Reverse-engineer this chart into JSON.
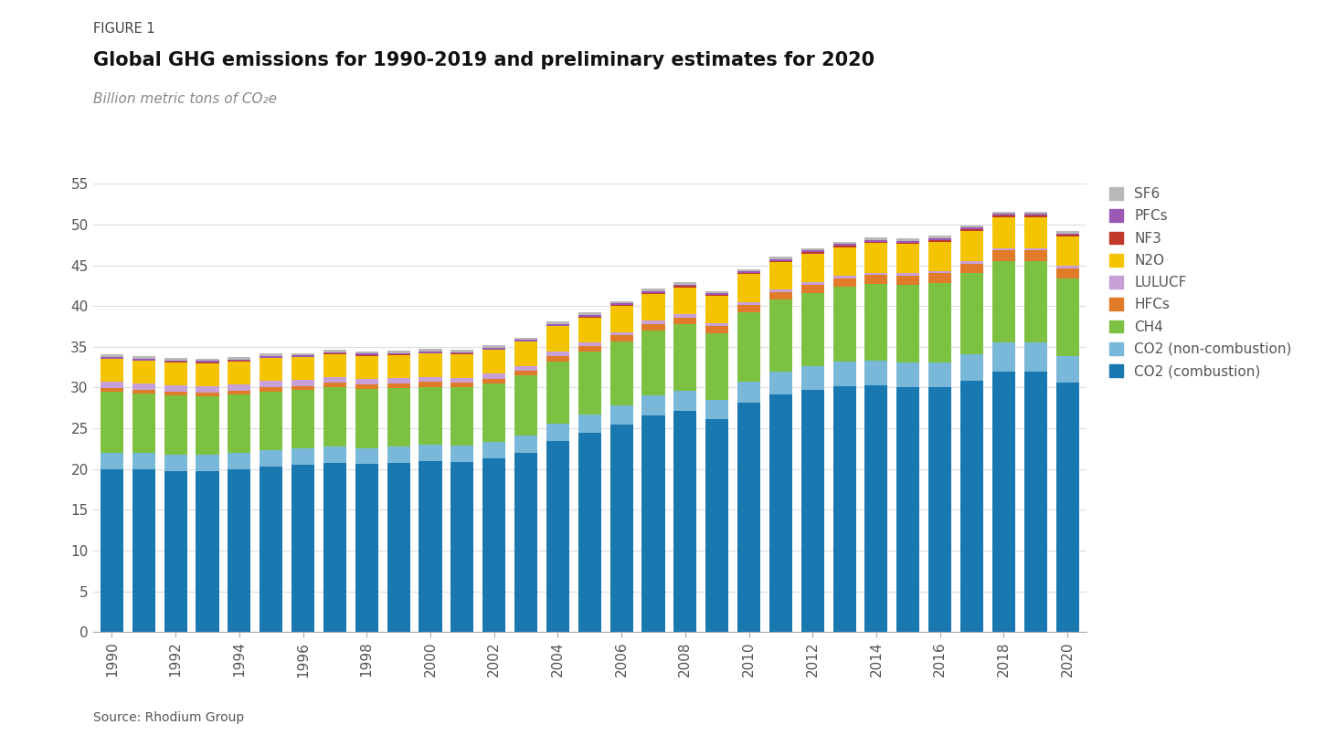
{
  "years": [
    1990,
    1991,
    1992,
    1993,
    1994,
    1995,
    1996,
    1997,
    1998,
    1999,
    2000,
    2001,
    2002,
    2003,
    2004,
    2005,
    2006,
    2007,
    2008,
    2009,
    2010,
    2011,
    2012,
    2013,
    2014,
    2015,
    2016,
    2017,
    2018,
    2019,
    2020
  ],
  "co2_combustion": [
    20.0,
    20.0,
    19.8,
    19.8,
    20.0,
    20.3,
    20.5,
    20.8,
    20.6,
    20.8,
    21.0,
    20.9,
    21.3,
    22.0,
    23.4,
    24.5,
    25.5,
    26.6,
    27.1,
    26.1,
    28.1,
    29.2,
    29.7,
    30.2,
    30.3,
    30.1,
    30.0,
    30.8,
    32.0,
    32.0,
    30.6
  ],
  "co2_noncombustion": [
    2.0,
    2.0,
    2.0,
    2.0,
    2.0,
    2.0,
    2.0,
    2.0,
    2.0,
    2.0,
    2.0,
    2.0,
    2.0,
    2.1,
    2.2,
    2.2,
    2.3,
    2.4,
    2.5,
    2.4,
    2.6,
    2.8,
    2.9,
    3.0,
    3.0,
    3.0,
    3.1,
    3.3,
    3.5,
    3.5,
    3.3
  ],
  "ch4": [
    7.5,
    7.3,
    7.2,
    7.1,
    7.1,
    7.2,
    7.2,
    7.2,
    7.2,
    7.1,
    7.1,
    7.1,
    7.2,
    7.4,
    7.6,
    7.7,
    7.8,
    8.0,
    8.2,
    8.2,
    8.5,
    8.8,
    9.0,
    9.2,
    9.4,
    9.5,
    9.7,
    9.9,
    10.0,
    10.0,
    9.5
  ],
  "hfcs": [
    0.4,
    0.4,
    0.5,
    0.5,
    0.5,
    0.5,
    0.5,
    0.6,
    0.6,
    0.6,
    0.6,
    0.6,
    0.6,
    0.6,
    0.7,
    0.7,
    0.8,
    0.8,
    0.8,
    0.8,
    0.9,
    0.9,
    1.0,
    1.0,
    1.1,
    1.1,
    1.2,
    1.2,
    1.3,
    1.3,
    1.2
  ],
  "lulucf": [
    0.8,
    0.8,
    0.8,
    0.8,
    0.8,
    0.8,
    0.7,
    0.7,
    0.7,
    0.7,
    0.6,
    0.6,
    0.6,
    0.5,
    0.5,
    0.4,
    0.4,
    0.4,
    0.4,
    0.4,
    0.4,
    0.3,
    0.3,
    0.3,
    0.3,
    0.3,
    0.3,
    0.3,
    0.3,
    0.3,
    0.3
  ],
  "n2o": [
    2.8,
    2.8,
    2.8,
    2.8,
    2.8,
    2.8,
    2.8,
    2.8,
    2.8,
    2.8,
    2.9,
    2.9,
    2.9,
    3.0,
    3.1,
    3.1,
    3.2,
    3.3,
    3.3,
    3.3,
    3.4,
    3.4,
    3.5,
    3.5,
    3.6,
    3.6,
    3.6,
    3.7,
    3.8,
    3.8,
    3.6
  ],
  "nf3": [
    0.05,
    0.05,
    0.05,
    0.05,
    0.05,
    0.05,
    0.05,
    0.05,
    0.05,
    0.05,
    0.05,
    0.05,
    0.05,
    0.05,
    0.1,
    0.1,
    0.1,
    0.1,
    0.15,
    0.15,
    0.15,
    0.15,
    0.2,
    0.2,
    0.2,
    0.2,
    0.2,
    0.2,
    0.2,
    0.2,
    0.2
  ],
  "pfcs": [
    0.2,
    0.2,
    0.2,
    0.2,
    0.2,
    0.2,
    0.2,
    0.2,
    0.2,
    0.2,
    0.2,
    0.2,
    0.2,
    0.2,
    0.2,
    0.2,
    0.2,
    0.2,
    0.2,
    0.2,
    0.2,
    0.2,
    0.2,
    0.2,
    0.2,
    0.2,
    0.2,
    0.2,
    0.2,
    0.2,
    0.2
  ],
  "sf6": [
    0.3,
    0.3,
    0.3,
    0.3,
    0.3,
    0.3,
    0.3,
    0.3,
    0.3,
    0.3,
    0.3,
    0.3,
    0.3,
    0.3,
    0.3,
    0.3,
    0.3,
    0.3,
    0.3,
    0.3,
    0.3,
    0.3,
    0.3,
    0.3,
    0.3,
    0.3,
    0.3,
    0.3,
    0.3,
    0.3,
    0.3
  ],
  "colors": {
    "co2_combustion": "#1a78b0",
    "co2_noncombustion": "#7ab8d9",
    "ch4": "#7dc142",
    "hfcs": "#e07b2a",
    "lulucf": "#c8a0d8",
    "n2o": "#f5c400",
    "nf3": "#c0392b",
    "pfcs": "#9b59b6",
    "sf6": "#b8b8b8"
  },
  "labels": {
    "co2_combustion": "CO2 (combustion)",
    "co2_noncombustion": "CO2 (non-combustion)",
    "ch4": "CH4",
    "hfcs": "HFCs",
    "lulucf": "LULUCF",
    "n2o": "N2O",
    "nf3": "NF3",
    "pfcs": "PFCs",
    "sf6": "SF6"
  },
  "figure_label": "FIGURE 1",
  "title": "Global GHG emissions for 1990-2019 and preliminary estimates for 2020",
  "subtitle": "Billion metric tons of CO₂e",
  "source": "Source: Rhodium Group",
  "ylim": [
    0,
    55
  ],
  "yticks": [
    0,
    5,
    10,
    15,
    20,
    25,
    30,
    35,
    40,
    45,
    50,
    55
  ],
  "background_color": "#ffffff"
}
